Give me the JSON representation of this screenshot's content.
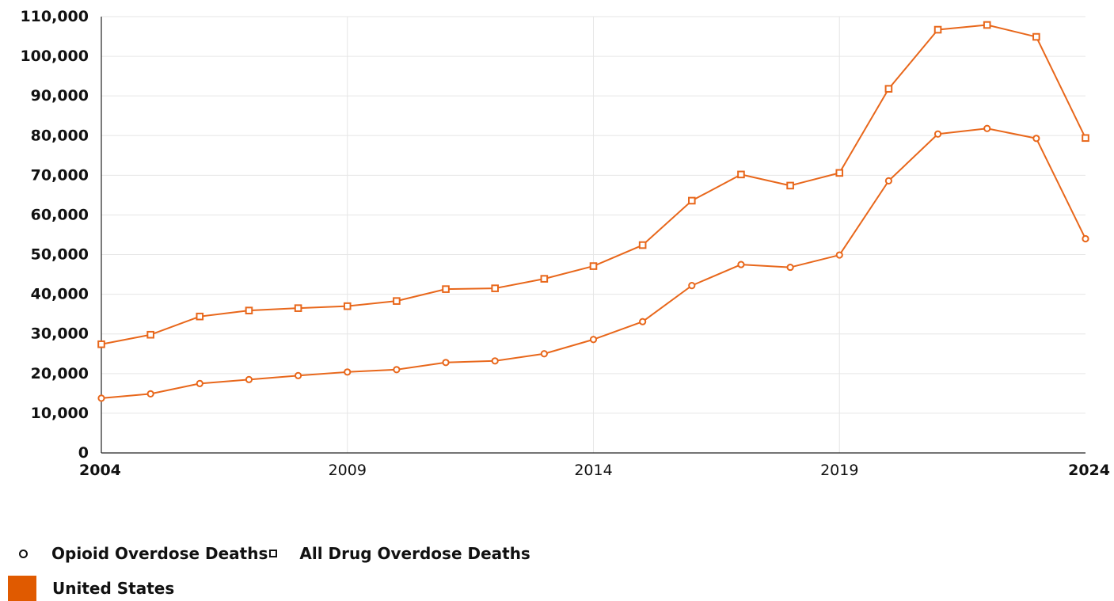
{
  "chart_data": {
    "type": "line",
    "x": [
      2004,
      2005,
      2006,
      2007,
      2008,
      2009,
      2010,
      2011,
      2012,
      2013,
      2014,
      2015,
      2016,
      2017,
      2018,
      2019,
      2020,
      2021,
      2022,
      2023,
      2024
    ],
    "series": [
      {
        "name": "Opioid Overdose Deaths",
        "marker": "circle",
        "color": "#e8671b",
        "values": [
          13800,
          14900,
          17500,
          18500,
          19500,
          20400,
          21000,
          22800,
          23200,
          25000,
          28600,
          33100,
          42200,
          47500,
          46800,
          49900,
          68600,
          80400,
          81800,
          79300,
          54000
        ]
      },
      {
        "name": "All Drug Overdose Deaths",
        "marker": "square",
        "color": "#e8671b",
        "values": [
          27400,
          29800,
          34400,
          35900,
          36500,
          37000,
          38300,
          41300,
          41500,
          43900,
          47100,
          52400,
          63600,
          70200,
          67400,
          70600,
          91800,
          106700,
          107900,
          104900,
          79400
        ]
      }
    ],
    "xlim": [
      2004,
      2024
    ],
    "ylim": [
      0,
      110000
    ],
    "xticks": [
      "2004",
      "2009",
      "2014",
      "2019",
      "2024"
    ],
    "xticks_bold": [
      "2004",
      "2024"
    ],
    "yticks": [
      "0",
      "10,000",
      "20,000",
      "30,000",
      "40,000",
      "50,000",
      "60,000",
      "70,000",
      "80,000",
      "90,000",
      "100,000",
      "110,000"
    ],
    "grid": true,
    "legend_position": "bottom-left",
    "title": "",
    "xlabel": "",
    "ylabel": ""
  },
  "legend": {
    "series_1_label": "Opioid Overdose Deaths",
    "series_2_label": "All Drug Overdose Deaths",
    "region_label": "United States",
    "region_color": "#e05a00"
  },
  "colors": {
    "line": "#e8671b",
    "grid": "#e6e6e6",
    "axis": "#222222"
  }
}
